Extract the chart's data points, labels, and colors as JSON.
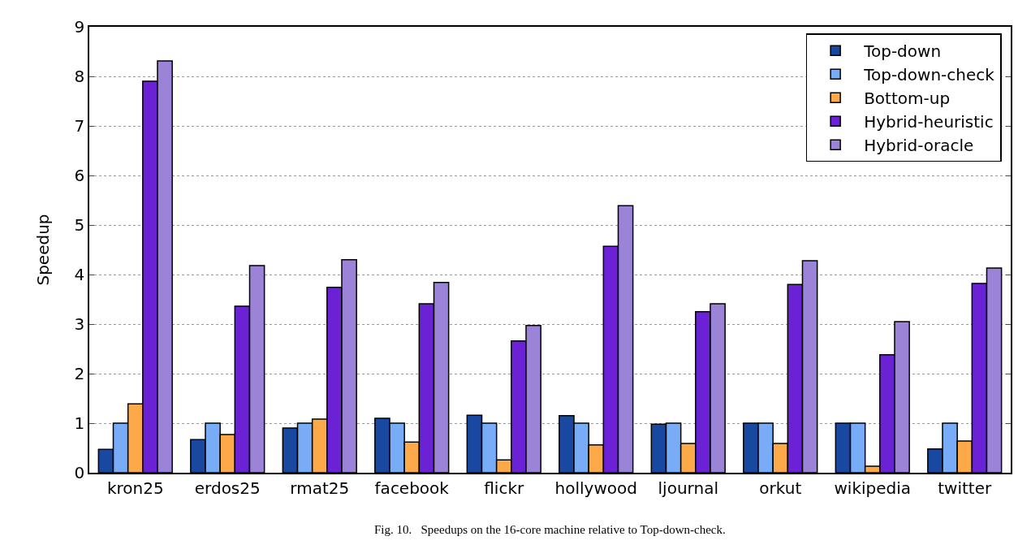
{
  "chart_data": {
    "type": "bar",
    "ylabel": "Speedup",
    "categories": [
      "kron25",
      "erdos25",
      "rmat25",
      "facebook",
      "flickr",
      "hollywood",
      "ljournal",
      "orkut",
      "wikipedia",
      "twitter"
    ],
    "series": [
      {
        "name": "Top-down",
        "color": "#1848a0",
        "values": [
          0.47,
          0.67,
          0.9,
          1.1,
          1.16,
          1.15,
          0.98,
          1.0,
          1.0,
          0.48
        ]
      },
      {
        "name": "Top-down-check",
        "color": "#78acf6",
        "values": [
          1.0,
          1.0,
          1.0,
          1.0,
          1.0,
          1.0,
          1.0,
          1.0,
          1.0,
          1.0
        ]
      },
      {
        "name": "Bottom-up",
        "color": "#fca94a",
        "values": [
          1.39,
          0.77,
          1.08,
          0.62,
          0.26,
          0.56,
          0.59,
          0.59,
          0.13,
          0.64
        ]
      },
      {
        "name": "Hybrid-heuristic",
        "color": "#6a22d4",
        "values": [
          7.9,
          3.36,
          3.74,
          3.41,
          2.66,
          4.57,
          3.25,
          3.8,
          2.38,
          3.82
        ]
      },
      {
        "name": "Hybrid-oracle",
        "color": "#9b83d8",
        "values": [
          8.31,
          4.18,
          4.3,
          3.84,
          2.97,
          5.39,
          3.41,
          4.28,
          3.05,
          4.13
        ]
      }
    ],
    "ylim": [
      0,
      9
    ],
    "yticks": [
      0,
      1,
      2,
      3,
      4,
      5,
      6,
      7,
      8,
      9
    ],
    "grid": "y",
    "legend": "top right",
    "annotations": [
      "Fig. 10.   Speedups on the 16-core machine relative to Top-down-check."
    ]
  }
}
